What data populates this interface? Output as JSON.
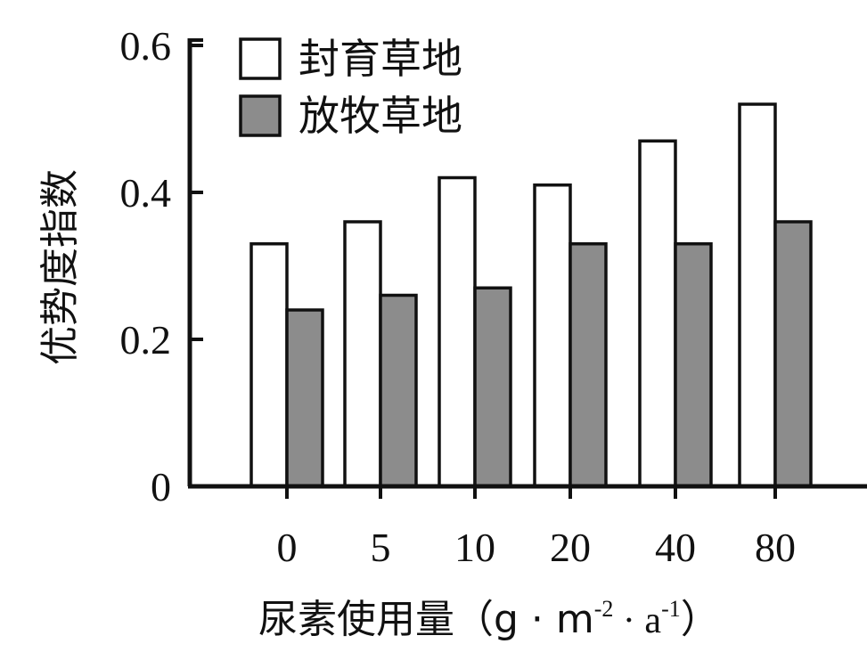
{
  "chart_data": {
    "type": "bar",
    "title": "",
    "categories": [
      "0",
      "5",
      "10",
      "20",
      "40",
      "80"
    ],
    "series": [
      {
        "name": "封育草地",
        "values": [
          0.33,
          0.36,
          0.42,
          0.41,
          0.47,
          0.52
        ],
        "color": "#ffffff"
      },
      {
        "name": "放牧草地",
        "values": [
          0.24,
          0.26,
          0.27,
          0.33,
          0.33,
          0.36
        ],
        "color": "#8c8c8c"
      }
    ],
    "ylabel": "优势度指数",
    "xlabel_text": "尿素使用量（g · m",
    "xlabel_unit_m_exp": "-2",
    "xlabel_mid": " · a",
    "xlabel_unit_a_exp": "-1",
    "xlabel_close": "）",
    "ylim": [
      0,
      0.6
    ],
    "yticks": [
      {
        "value": 0,
        "label": "0"
      },
      {
        "value": 0.2,
        "label": "0.2"
      },
      {
        "value": 0.4,
        "label": "0.4"
      },
      {
        "value": 0.6,
        "label": "0.6"
      }
    ],
    "legend_position": "top-left",
    "grid": false
  }
}
